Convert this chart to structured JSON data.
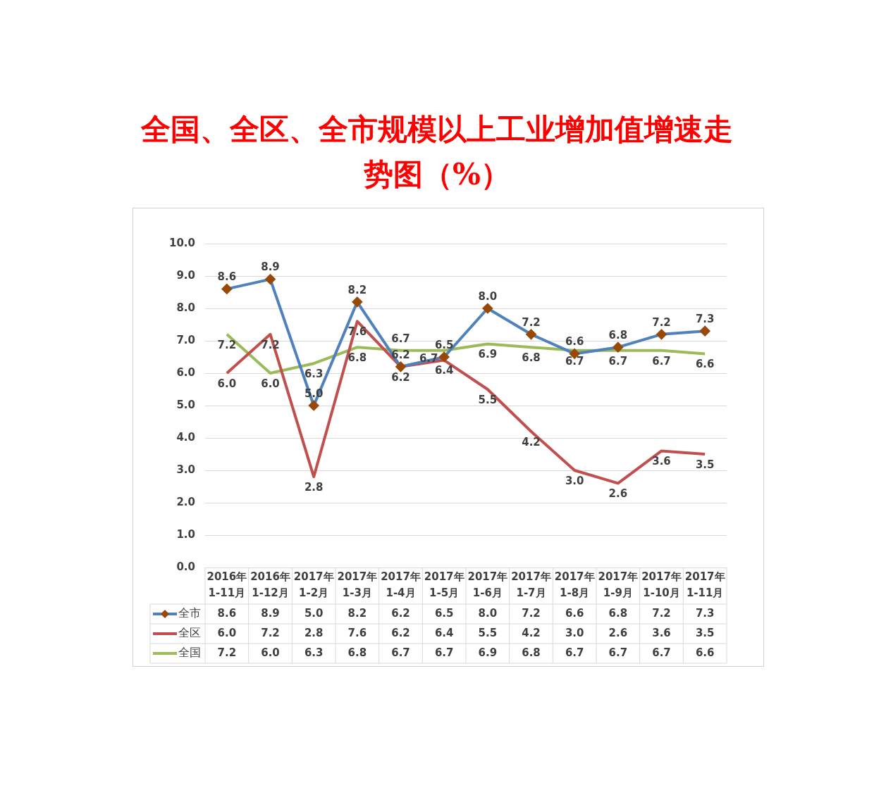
{
  "chart_data": {
    "type": "line",
    "title": "全国、全区、全市规模以上工业增加值增速走势图（%）",
    "categories": [
      "2016年 1-11月",
      "2016年 1-12月",
      "2017年 1-2月",
      "2017年 1-3月",
      "2017年 1-4月",
      "2017年 1-5月",
      "2017年 1-6月",
      "2017年 1-7月",
      "2017年 1-8月",
      "2017年 1-9月",
      "2017年 1-10月",
      "2017年 1-11月"
    ],
    "series": [
      {
        "name": "全市",
        "color": "#4f81bd",
        "marker": "diamond",
        "values": [
          8.6,
          8.9,
          5.0,
          8.2,
          6.2,
          6.5,
          8.0,
          7.2,
          6.6,
          6.8,
          7.2,
          7.3
        ],
        "value_labels": [
          "8.6",
          "8.9",
          "5.0",
          "8.2",
          "6.2",
          "6.5",
          "8.0",
          "7.2",
          "6.6",
          "6.8",
          "7.2",
          "7.3"
        ]
      },
      {
        "name": "全区",
        "color": "#c0504d",
        "values": [
          6.0,
          7.2,
          2.8,
          7.6,
          6.2,
          6.4,
          5.5,
          4.2,
          3.0,
          2.6,
          3.6,
          3.5
        ],
        "value_labels": [
          "6.0",
          "7.2",
          "2.8",
          "7.6",
          "6.2",
          "6.4",
          "5.5",
          "4.2",
          "3.0",
          "2.6",
          "3.6",
          "3.5"
        ]
      },
      {
        "name": "全国",
        "color": "#9bbb59",
        "values": [
          7.2,
          6.0,
          6.3,
          6.8,
          6.7,
          6.7,
          6.9,
          6.8,
          6.7,
          6.7,
          6.7,
          6.6
        ],
        "value_labels": [
          "7.2",
          "6.0",
          "6.3",
          "6.8",
          "6.7",
          "6.7",
          "6.9",
          "6.8",
          "6.7",
          "6.7",
          "6.7",
          "6.6"
        ]
      }
    ],
    "annotations": [
      {
        "text": "8.6",
        "x": "2016年 1-11月",
        "y": 8.6
      },
      {
        "text": "8.9",
        "x": "2016年 1-12月",
        "y": 8.9
      },
      {
        "text": "5.0",
        "x": "2017年 1-2月",
        "y": 5.0
      },
      {
        "text": "8.2",
        "x": "2017年 1-3月",
        "y": 8.2
      },
      {
        "text": "6.2",
        "x": "2017年 1-4月",
        "y": 6.2
      },
      {
        "text": "6.5",
        "x": "2017年 1-5月",
        "y": 6.5
      },
      {
        "text": "8.0",
        "x": "2017年 1-6月",
        "y": 8.0
      },
      {
        "text": "7.2",
        "x": "2017年 1-7月",
        "y": 7.2
      },
      {
        "text": "6.6",
        "x": "2017年 1-8月",
        "y": 6.6
      },
      {
        "text": "6.8",
        "x": "2017年 1-9月",
        "y": 6.8
      },
      {
        "text": "7.2",
        "x": "2017年 1-10月",
        "y": 7.2
      },
      {
        "text": "7.3",
        "x": "2017年 1-11月",
        "y": 7.3
      },
      {
        "text": "6.0",
        "x": "2016年 1-11月",
        "y": 6.0
      },
      {
        "text": "7.2",
        "x": "2016年 1-12月",
        "y": 7.2
      },
      {
        "text": "2.8",
        "x": "2017年 1-2月",
        "y": 2.8
      },
      {
        "text": "7.6",
        "x": "2017年 1-3月",
        "y": 7.6
      },
      {
        "text": "6.2",
        "x": "2017年 1-4月",
        "y": 6.2
      },
      {
        "text": "6.4",
        "x": "2017年 1-5月",
        "y": 6.4
      },
      {
        "text": "5.5",
        "x": "2017年 1-6月",
        "y": 5.5
      },
      {
        "text": "4.2",
        "x": "2017年 1-7月",
        "y": 4.2
      },
      {
        "text": "3.0",
        "x": "2017年 1-8月",
        "y": 3.0
      },
      {
        "text": "2.6",
        "x": "2017年 1-9月",
        "y": 2.6
      },
      {
        "text": "3.6",
        "x": "2017年 1-10月",
        "y": 3.6
      },
      {
        "text": "3.5",
        "x": "2017年 1-11月",
        "y": 3.5
      },
      {
        "text": "7.2",
        "x": "2016年 1-11月",
        "y": 7.2
      },
      {
        "text": "6.0",
        "x": "2016年 1-12月",
        "y": 6.0
      },
      {
        "text": "6.3",
        "x": "2017年 1-2月",
        "y": 6.3
      },
      {
        "text": "6.8",
        "x": "2017年 1-3月",
        "y": 6.8
      },
      {
        "text": "6.7",
        "x": "2017年 1-4月",
        "y": 6.7
      },
      {
        "text": "6.7",
        "x": "2017年 1-5月",
        "y": 6.7
      },
      {
        "text": "6.9",
        "x": "2017年 1-6月",
        "y": 6.9
      },
      {
        "text": "6.8",
        "x": "2017年 1-7月",
        "y": 6.8
      },
      {
        "text": "6.7",
        "x": "2017年 1-8月",
        "y": 6.7
      },
      {
        "text": "6.7",
        "x": "2017年 1-9月",
        "y": 6.7
      },
      {
        "text": "6.7",
        "x": "2017年 1-10月",
        "y": 6.7
      },
      {
        "text": "6.6",
        "x": "2017年 1-11月",
        "y": 6.6
      }
    ],
    "ylim": [
      0,
      10
    ],
    "yticks": [
      {
        "value": 0,
        "label": "0.0"
      },
      {
        "value": 1,
        "label": "1.0"
      },
      {
        "value": 2,
        "label": "2.0"
      },
      {
        "value": 3,
        "label": "3.0"
      },
      {
        "value": 4,
        "label": "4.0"
      },
      {
        "value": 5,
        "label": "5.0"
      },
      {
        "value": 6,
        "label": "6.0"
      },
      {
        "value": 7,
        "label": "7.0"
      },
      {
        "value": 8,
        "label": "8.0"
      },
      {
        "value": 9,
        "label": "9.0"
      },
      {
        "value": 10,
        "label": "10.0"
      }
    ],
    "grid": "y",
    "legend": "bottom left"
  }
}
